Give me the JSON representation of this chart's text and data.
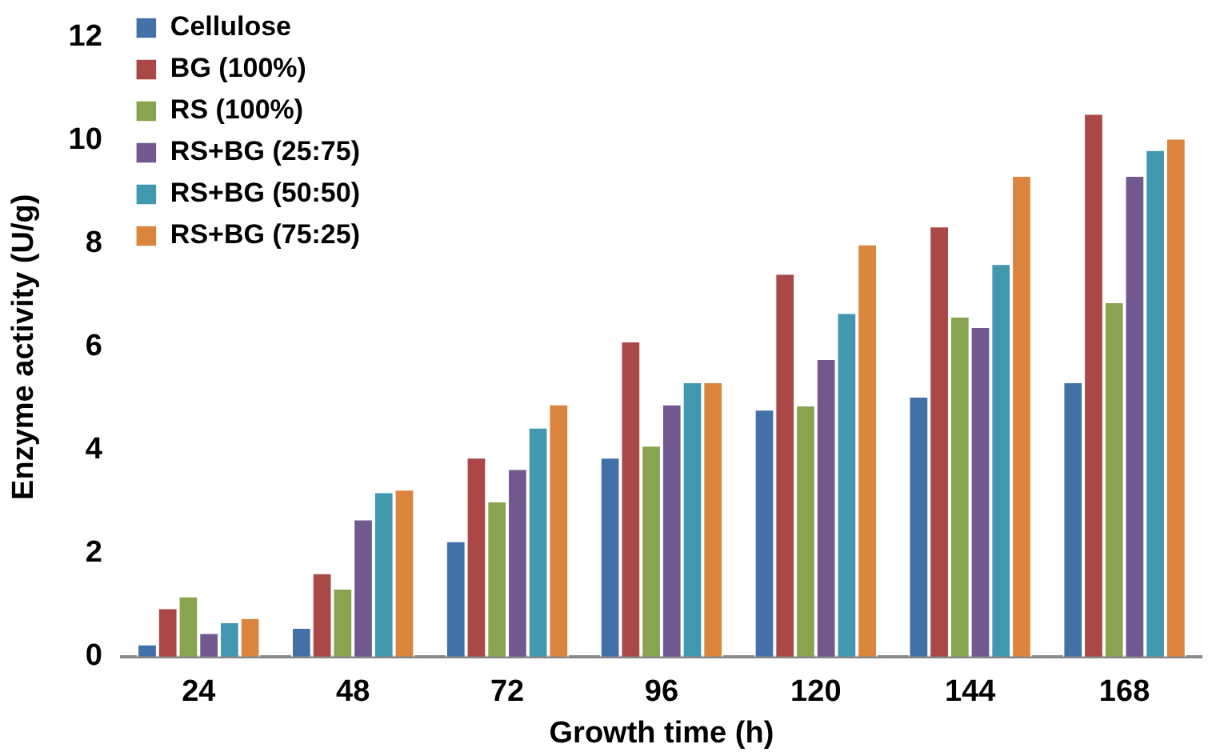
{
  "chart_data": {
    "type": "bar",
    "xlabel": "Growth time (h)",
    "ylabel": "Enzyme activity (U/g)",
    "categories": [
      "24",
      "48",
      "72",
      "96",
      "120",
      "144",
      "168"
    ],
    "series": [
      {
        "name": "Cellulose",
        "color": "#4470a8",
        "values": [
          0.25,
          0.57,
          2.25,
          3.87,
          4.8,
          5.05,
          5.33
        ]
      },
      {
        "name": "BG (100%)",
        "color": "#a94846",
        "values": [
          0.95,
          1.63,
          3.87,
          6.12,
          7.43,
          8.35,
          10.53
        ]
      },
      {
        "name": "RS (100%)",
        "color": "#89a44e",
        "values": [
          1.18,
          1.33,
          3.02,
          4.1,
          4.88,
          6.6,
          6.88
        ]
      },
      {
        "name": "RS+BG (25:75)",
        "color": "#71588f",
        "values": [
          0.47,
          2.67,
          3.65,
          4.9,
          5.78,
          6.4,
          9.33
        ]
      },
      {
        "name": "RS+BG (50:50)",
        "color": "#4298af",
        "values": [
          0.68,
          3.2,
          4.45,
          5.33,
          6.67,
          7.62,
          9.83
        ]
      },
      {
        "name": "RS+BG (75:25)",
        "color": "#db843d",
        "values": [
          0.76,
          3.25,
          4.9,
          5.33,
          8.0,
          9.33,
          10.05
        ]
      }
    ],
    "ylim": [
      0,
      12
    ],
    "yticks": [
      0,
      2,
      4,
      6,
      8,
      10,
      12
    ],
    "grid": false,
    "legend": "top left"
  }
}
